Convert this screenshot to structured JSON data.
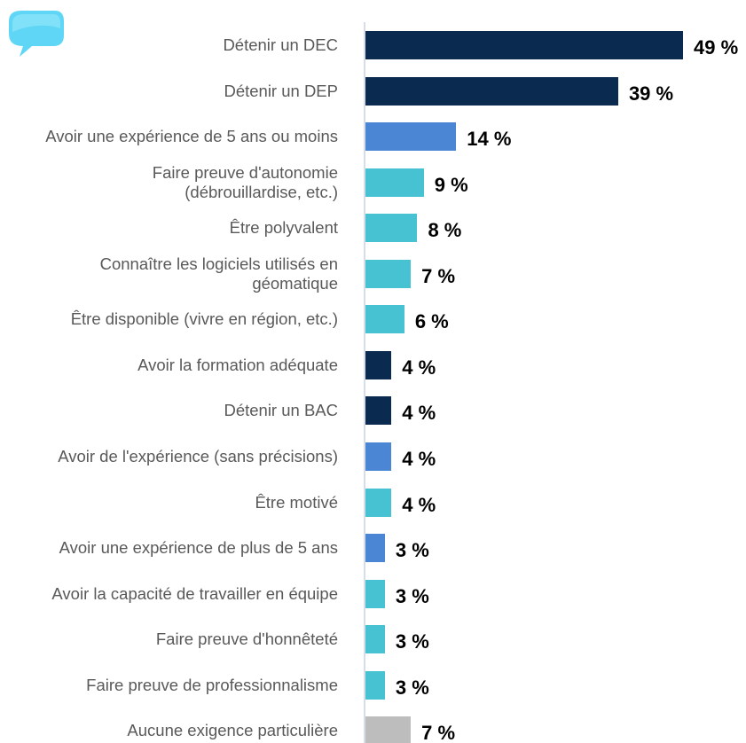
{
  "chart_data": {
    "type": "bar",
    "orientation": "horizontal",
    "categories": [
      "Détenir un DEC",
      "Détenir un DEP",
      "Avoir une expérience de 5 ans ou moins",
      "Faire preuve d'autonomie (débrouillardise, etc.)",
      "Être polyvalent",
      "Connaître les logiciels utilisés en géomatique",
      "Être disponible (vivre en région, etc.)",
      "Avoir la formation adéquate",
      "Détenir un BAC",
      "Avoir de l'expérience (sans précisions)",
      "Être motivé",
      "Avoir une expérience de plus de 5 ans",
      "Avoir la capacité de travailler en équipe",
      "Faire preuve d'honnêteté",
      "Faire preuve de professionnalisme",
      "Aucune exigence particulière"
    ],
    "values": [
      49,
      39,
      14,
      9,
      8,
      7,
      6,
      4,
      4,
      4,
      4,
      3,
      3,
      3,
      3,
      7
    ],
    "value_labels": [
      "49 %",
      "39 %",
      "14 %",
      "9 %",
      "8 %",
      "7 %",
      "6 %",
      "4 %",
      "4 %",
      "4 %",
      "4 %",
      "3 %",
      "3 %",
      "3 %",
      "3 %",
      "7 %"
    ],
    "colors": [
      "#0b2a4f",
      "#0b2a4f",
      "#4a86d4",
      "#46c2d3",
      "#46c2d3",
      "#46c2d3",
      "#46c2d3",
      "#0b2a4f",
      "#0b2a4f",
      "#4a86d4",
      "#46c2d3",
      "#4a86d4",
      "#46c2d3",
      "#46c2d3",
      "#46c2d3",
      "#bdbdbd"
    ]
  }
}
